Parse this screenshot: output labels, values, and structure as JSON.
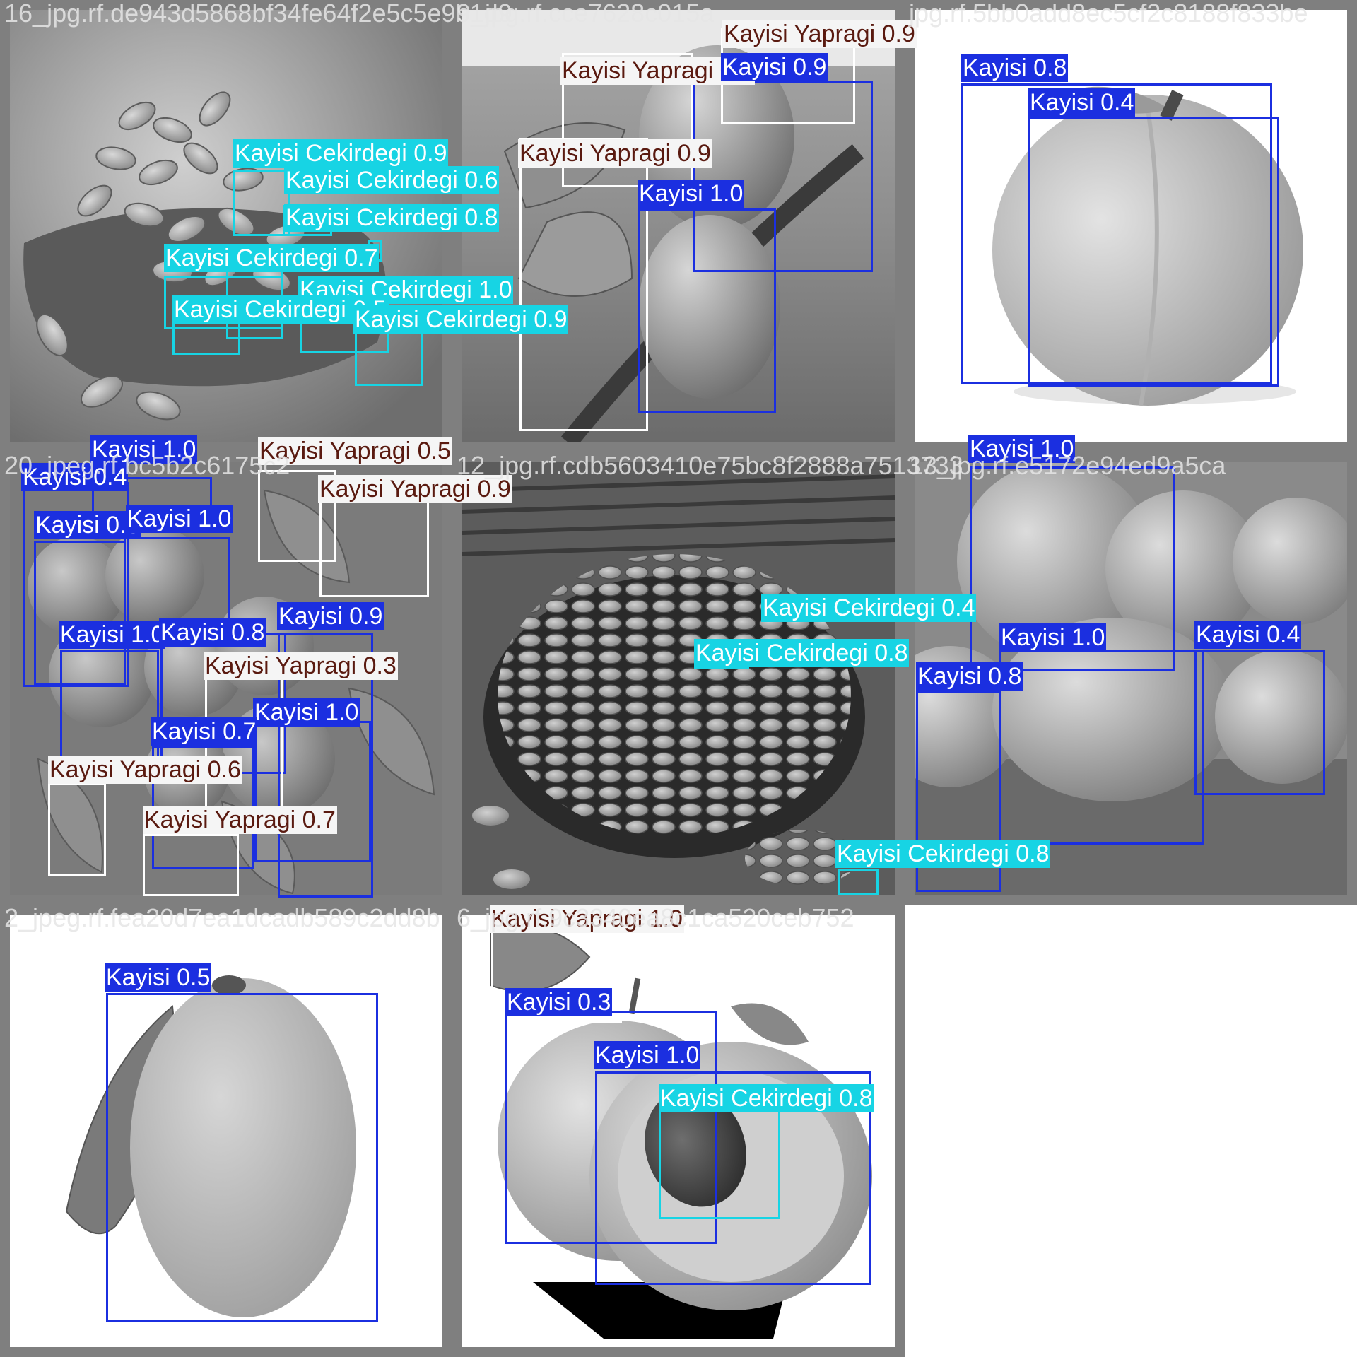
{
  "classes": {
    "Kayisi": {
      "name": "Kayisi",
      "color": "#1b2fe0"
    },
    "Kayisi Cekirdegi": {
      "name": "Kayisi Cekirdegi",
      "color": "#17d4e4"
    },
    "Kayisi Yapragi": {
      "name": "Kayisi Yapragi",
      "color": "#ffffff"
    }
  },
  "tiles": [
    {
      "name": "16_jpg.rf.de943d5868bf34fe64f2e5c5e9b1d9",
      "scene": "almond-like apricot kernels in ornate dish",
      "labels": [
        {
          "cls": "Kayisi Cekirdegi",
          "text": "Kayisi Cekirdegi 0.6"
        },
        {
          "cls": "Kayisi Cekirdegi",
          "text": "Kayisi Cekirdegi 0.8"
        },
        {
          "cls": "Kayisi Cekirdegi",
          "text": "Kayisi Cekirdegi 0.7"
        },
        {
          "cls": "Kayisi Cekirdegi",
          "text": "Kayisi Cekirdegi 0.9"
        },
        {
          "cls": "Kayisi Cekirdegi",
          "text": "Kayisi Cekirdegi 1.0"
        },
        {
          "cls": "Kayisi Cekirdegi",
          "text": "Kayisi Cekirdegi 0.5"
        },
        {
          "cls": "Kayisi Cekirdegi",
          "text": "Kayisi Cekirdegi 0.9"
        },
        {
          "cls": "Kayisi Cekirdegi",
          "text": "Kayisi Cekirdegi 0.9"
        }
      ]
    },
    {
      "name": "9_jpg.rf.cce7628c015a",
      "scene": "apricots on branch with leaves",
      "labels": [
        {
          "cls": "Kayisi Yapragi",
          "text": "Kayisi Yapragi 0.9"
        },
        {
          "cls": "Kayisi Yapragi",
          "text": "Kayisi Yapragi 0.9"
        },
        {
          "cls": "Kayisi Yapragi",
          "text": "Kayisi Yapragi 0.9"
        },
        {
          "cls": "Kayisi",
          "text": "Kayisi 0.9"
        },
        {
          "cls": "Kayisi",
          "text": "Kayisi 1.0"
        }
      ]
    },
    {
      "name": "jpg.rf.5bb0add8ec5cf2c8188f833be",
      "scene": "single apricot on white background",
      "labels": [
        {
          "cls": "Kayisi",
          "text": "Kayisi 0.8"
        },
        {
          "cls": "Kayisi",
          "text": "Kayisi 0.4"
        }
      ]
    },
    {
      "name": "20_jpeg.rf.bc5b2c6175c2",
      "scene": "cluster of apricots among leaves",
      "labels": [
        {
          "cls": "Kayisi",
          "text": "Kayisi 1.0"
        },
        {
          "cls": "Kayisi",
          "text": "Kayisi 0.4"
        },
        {
          "cls": "Kayisi",
          "text": "Kayisi 0.3"
        },
        {
          "cls": "Kayisi",
          "text": "Kayisi 1.0"
        },
        {
          "cls": "Kayisi Yapragi",
          "text": "Kayisi Yapragi 0.5"
        },
        {
          "cls": "Kayisi Yapragi",
          "text": "Kayisi Yapragi 0.9"
        },
        {
          "cls": "Kayisi",
          "text": "Kayisi 0.9"
        },
        {
          "cls": "Kayisi",
          "text": "Kayisi 1.0"
        },
        {
          "cls": "Kayisi",
          "text": "Kayisi 0.8"
        },
        {
          "cls": "Kayisi Yapragi",
          "text": "Kayisi Yapragi 0.3"
        },
        {
          "cls": "Kayisi",
          "text": "Kayisi 1.0"
        },
        {
          "cls": "Kayisi",
          "text": "Kayisi 0.7"
        },
        {
          "cls": "Kayisi Yapragi",
          "text": "Kayisi Yapragi 0.6"
        },
        {
          "cls": "Kayisi Yapragi",
          "text": "Kayisi Yapragi 0.7"
        }
      ]
    },
    {
      "name": "12_jpg.rf.cdb5603410e75bc8f2888a7513733",
      "scene": "bowl of apricot kernels",
      "labels": [
        {
          "cls": "Kayisi Cekirdegi",
          "text": "Kayisi Cekirdegi 0.4"
        },
        {
          "cls": "Kayisi Cekirdegi",
          "text": "Kayisi Cekirdegi 0.8"
        },
        {
          "cls": "Kayisi Cekirdegi",
          "text": "Kayisi Cekirdegi 0.8"
        }
      ]
    },
    {
      "name": "13_jpg.rf.e5172e94ed9a5ca",
      "scene": "apricots in a tray",
      "labels": [
        {
          "cls": "Kayisi",
          "text": "Kayisi 1.0"
        },
        {
          "cls": "Kayisi",
          "text": "Kayisi 1.0"
        },
        {
          "cls": "Kayisi",
          "text": "Kayisi 0.4"
        },
        {
          "cls": "Kayisi",
          "text": "Kayisi 0.8"
        }
      ]
    },
    {
      "name": "2_jpeg.rf.fea20d7ea1dcadb589c2dd8b",
      "scene": "single apricot with leaf",
      "labels": [
        {
          "cls": "Kayisi",
          "text": "Kayisi 0.5"
        }
      ]
    },
    {
      "name": "6_jpg.rf.9c3340ea8c1ca520ceb752",
      "scene": "halved apricot showing pit",
      "labels": [
        {
          "cls": "Kayisi Yapragi",
          "text": "Kayisi Yapragi 1.0"
        },
        {
          "cls": "Kayisi",
          "text": "Kayisi 0.3"
        },
        {
          "cls": "Kayisi",
          "text": "Kayisi 1.0"
        },
        {
          "cls": "Kayisi Cekirdegi",
          "text": "Kayisi Cekirdegi 0.8"
        }
      ]
    }
  ]
}
